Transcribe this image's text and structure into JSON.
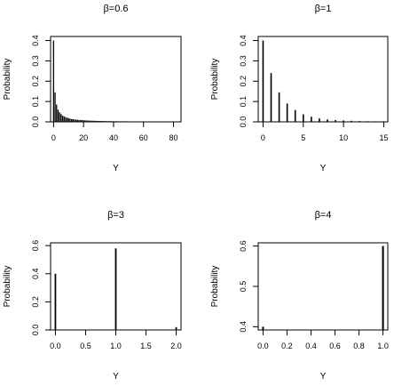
{
  "chart_data": [
    {
      "type": "bar",
      "title": "β=0.6",
      "xlabel": "Y",
      "ylabel": "Probability",
      "xlim": [
        -2,
        85
      ],
      "ylim": [
        0,
        0.42
      ],
      "xticks": [
        0,
        20,
        40,
        60,
        80
      ],
      "yticks": [
        0.0,
        0.1,
        0.2,
        0.3,
        0.4
      ],
      "x": [
        0,
        1,
        2,
        3,
        4,
        5,
        6,
        7,
        8,
        9,
        10,
        11,
        12,
        13,
        14,
        15,
        16,
        17,
        18,
        19,
        20,
        21,
        22,
        23,
        24,
        25,
        26,
        27,
        28,
        29,
        30,
        31,
        32,
        33,
        34,
        35,
        36,
        37,
        38,
        39,
        40,
        41,
        42,
        43,
        44,
        45,
        46,
        47,
        48,
        49,
        50,
        52,
        55,
        58,
        60,
        65,
        70,
        75,
        80,
        84
      ],
      "values": [
        0.4,
        0.145,
        0.085,
        0.06,
        0.047,
        0.038,
        0.031,
        0.027,
        0.023,
        0.02,
        0.018,
        0.016,
        0.014,
        0.013,
        0.012,
        0.011,
        0.01,
        0.0095,
        0.009,
        0.0085,
        0.008,
        0.0075,
        0.007,
        0.0066,
        0.0062,
        0.0058,
        0.0055,
        0.0052,
        0.005,
        0.0047,
        0.0045,
        0.0043,
        0.0041,
        0.004,
        0.0038,
        0.0037,
        0.0035,
        0.0034,
        0.0033,
        0.0032,
        0.003,
        0.0029,
        0.0028,
        0.0027,
        0.0026,
        0.0025,
        0.0024,
        0.0023,
        0.0023,
        0.0022,
        0.0021,
        0.002,
        0.0019,
        0.0018,
        0.0017,
        0.0016,
        0.0015,
        0.0014,
        0.0013,
        0.0012
      ]
    },
    {
      "type": "bar",
      "title": "β=1",
      "xlabel": "Y",
      "ylabel": "Probability",
      "xlim": [
        -0.6,
        15.5
      ],
      "ylim": [
        0,
        0.42
      ],
      "xticks": [
        0,
        5,
        10,
        15
      ],
      "yticks": [
        0.0,
        0.1,
        0.2,
        0.3,
        0.4
      ],
      "x": [
        0,
        1,
        2,
        3,
        4,
        5,
        6,
        7,
        8,
        9,
        10,
        11,
        12,
        13,
        14,
        15
      ],
      "values": [
        0.4,
        0.24,
        0.145,
        0.09,
        0.058,
        0.037,
        0.025,
        0.017,
        0.012,
        0.009,
        0.007,
        0.005,
        0.004,
        0.003,
        0.0025,
        0.002
      ]
    },
    {
      "type": "bar",
      "title": "β=3",
      "xlabel": "Y",
      "ylabel": "Probability",
      "xlim": [
        -0.08,
        2.08
      ],
      "ylim": [
        0,
        0.62
      ],
      "xticks": [
        0.0,
        0.5,
        1.0,
        1.5,
        2.0
      ],
      "yticks": [
        0.0,
        0.2,
        0.4,
        0.6
      ],
      "x": [
        0,
        1,
        2
      ],
      "values": [
        0.4,
        0.58,
        0.02
      ]
    },
    {
      "type": "bar",
      "title": "β=4",
      "xlabel": "Y",
      "ylabel": "Probability",
      "xlim": [
        -0.04,
        1.04
      ],
      "ylim": [
        0.392,
        0.608
      ],
      "xticks": [
        0.0,
        0.2,
        0.4,
        0.6,
        0.8,
        1.0
      ],
      "yticks": [
        0.4,
        0.5,
        0.6
      ],
      "x": [
        0,
        1
      ],
      "values": [
        0.4,
        0.6
      ]
    }
  ]
}
